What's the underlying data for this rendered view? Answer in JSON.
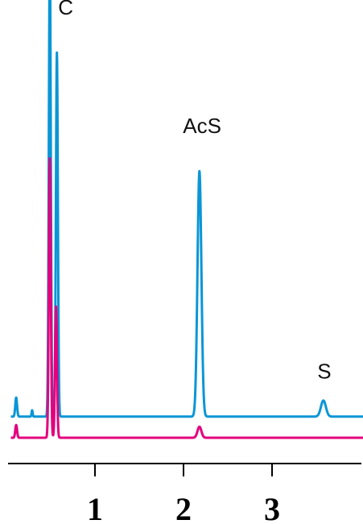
{
  "chart_data": {
    "type": "line",
    "title": "",
    "xlabel": "",
    "ylabel": "",
    "xlim": [
      -0.95,
      3.05
    ],
    "ylim": [
      0,
      1
    ],
    "grid": false,
    "legend": "none",
    "x_ticks": [
      {
        "value": 0,
        "label": "1"
      },
      {
        "value": 1,
        "label": "2"
      },
      {
        "value": 2,
        "label": "3"
      }
    ],
    "series": [
      {
        "color": "#0a96d6",
        "baseline": 0.05,
        "peaks": [
          {
            "x": -0.89,
            "height": 0.045,
            "width": 0.01
          },
          {
            "x": -0.71,
            "height": 0.015,
            "width": 0.006
          },
          {
            "x": -0.51,
            "height": 1.1,
            "width": 0.011
          },
          {
            "x": -0.43,
            "height": 0.86,
            "width": 0.011
          },
          {
            "x": 1.18,
            "height": 0.58,
            "width": 0.022
          },
          {
            "x": 2.58,
            "height": 0.038,
            "width": 0.028
          }
        ]
      },
      {
        "color": "#e3007d",
        "baseline": 0.0,
        "peaks": [
          {
            "x": -0.89,
            "height": 0.03,
            "width": 0.01
          },
          {
            "x": -0.51,
            "height": 0.66,
            "width": 0.011
          },
          {
            "x": -0.44,
            "height": 0.31,
            "width": 0.011
          },
          {
            "x": 1.18,
            "height": 0.026,
            "width": 0.022
          }
        ]
      }
    ],
    "annotations": [
      {
        "text": "C",
        "x": -0.33,
        "y": 1.0
      },
      {
        "text": "AcS",
        "x": 1.21,
        "y": 0.72
      },
      {
        "text": "S",
        "x": 2.59,
        "y": 0.14
      }
    ]
  }
}
